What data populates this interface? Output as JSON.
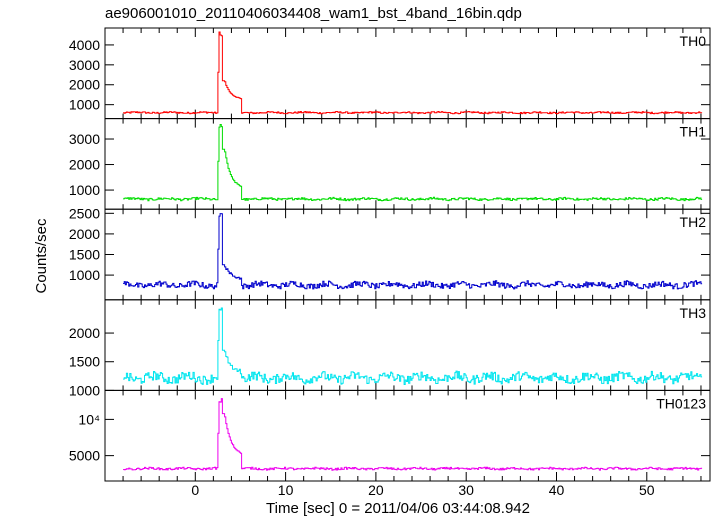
{
  "title": "ae906001010_20110406034408_wam1_bst_4band_16bin.qdp",
  "xlabel": "Time [sec] 0 = 2011/04/06 03:44:08.942",
  "ylabel": "Counts/sec",
  "chart_data": {
    "type": "line",
    "title": "ae906001010_20110406034408_wam1_bst_4band_16bin.qdp",
    "xlabel": "Time [sec] 0 = 2011/04/06 03:44:08.942",
    "ylabel": "Counts/sec",
    "x_ticks": [
      0,
      10,
      20,
      30,
      40,
      50
    ],
    "xlim": [
      -10,
      57
    ],
    "x_range": [
      -8.0,
      56.0
    ],
    "grid": false,
    "panels": [
      {
        "name": "TH0",
        "color": "#ff0000",
        "ylim": [
          300,
          4850
        ],
        "y_ticks": [
          1000,
          2000,
          3000,
          4000
        ],
        "y_tick_labels": [
          "1000",
          "2000",
          "3000",
          "4000"
        ],
        "baseline": 600,
        "noise": 40,
        "peak": 4650,
        "peak_time": 2.6,
        "shoulder": 2200,
        "tail": 1250
      },
      {
        "name": "TH1",
        "color": "#00dd00",
        "ylim": [
          250,
          3800
        ],
        "y_ticks": [
          1000,
          2000,
          3000
        ],
        "y_tick_labels": [
          "1000",
          "2000",
          "3000"
        ],
        "baseline": 650,
        "noise": 45,
        "peak": 3600,
        "peak_time": 2.6,
        "shoulder": 2600,
        "tail": 1050
      },
      {
        "name": "TH2",
        "color": "#0000cc",
        "ylim": [
          400,
          2600
        ],
        "y_ticks": [
          1000,
          1500,
          2000,
          2500
        ],
        "y_tick_labels": [
          "1000",
          "1500",
          "2000",
          "2500"
        ],
        "baseline": 760,
        "noise": 70,
        "peak": 2500,
        "peak_time": 2.6,
        "shoulder": 1250,
        "tail": 900
      },
      {
        "name": "TH3",
        "color": "#00e5ee",
        "ylim": [
          1000,
          2580
        ],
        "y_ticks": [
          1000,
          1500,
          2000
        ],
        "y_tick_labels": [
          "1000",
          "1500",
          "2000"
        ],
        "baseline": 1220,
        "noise": 80,
        "peak": 2520,
        "peak_time": 2.6,
        "shoulder": 1700,
        "tail": 1300
      },
      {
        "name": "TH0123",
        "color": "#ee00ee",
        "ylim": [
          1500,
          14000
        ],
        "y_ticks": [
          5000,
          10000
        ],
        "y_tick_labels": [
          "5000",
          "10⁴"
        ],
        "baseline": 3200,
        "noise": 140,
        "peak": 13000,
        "peak_time": 2.6,
        "shoulder": 10800,
        "tail": 5000
      }
    ]
  }
}
